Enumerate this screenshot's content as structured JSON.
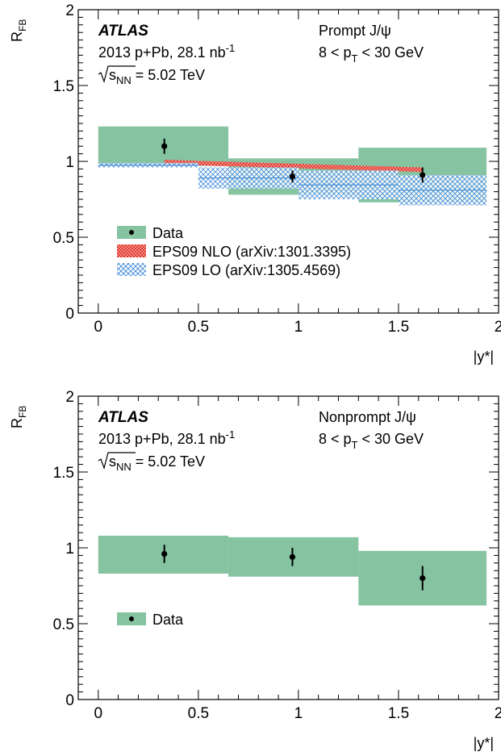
{
  "chart_data": [
    {
      "type": "scatter",
      "ylabel": "R",
      "ylabel_sub": "FB",
      "xlabel": "|y*|",
      "xlim": [
        -0.1,
        2.0
      ],
      "ylim": [
        0,
        2
      ],
      "xticks": [
        "0",
        "0.5",
        "1",
        "1.5",
        "2"
      ],
      "yticks": [
        "0",
        "0.5",
        "1",
        "1.5",
        "2"
      ],
      "text": {
        "atlas": "ATLAS",
        "dataset_prefix": "2013 p+Pb, 28.1 nb",
        "dataset_sup": "-1",
        "energy_s": "s",
        "energy_sub": "NN",
        "energy_val": " = 5.02 TeV",
        "species": "Prompt J/ψ",
        "pt_pre": "8 < p",
        "pt_sub": "T",
        "pt_post": " < 30 GeV"
      },
      "legend": {
        "placement": "bottom-left",
        "entries": [
          "Data",
          "EPS09 NLO (arXiv:1301.3395)",
          "EPS09 LO (arXiv:1305.4569)"
        ]
      },
      "series": [
        {
          "name": "Data",
          "points": [
            {
              "x": 0.33,
              "y": 1.1,
              "err": 0.05,
              "xlo": 0.0,
              "xhi": 0.65,
              "syslo": 0.97,
              "syshi": 1.23
            },
            {
              "x": 0.97,
              "y": 0.9,
              "err": 0.04,
              "xlo": 0.65,
              "xhi": 1.3,
              "syslo": 0.78,
              "syshi": 1.02
            },
            {
              "x": 1.62,
              "y": 0.91,
              "err": 0.05,
              "xlo": 1.3,
              "xhi": 1.94,
              "syslo": 0.73,
              "syshi": 1.09
            }
          ]
        },
        {
          "name": "EPS09 NLO (arXiv:1301.3395)",
          "band_x": [
            0.33,
            1.62
          ],
          "band_lo": [
            0.98,
            0.93
          ],
          "band_hi": [
            1.01,
            0.96
          ]
        },
        {
          "name": "EPS09 LO (arXiv:1305.4569)",
          "steps": [
            {
              "xlo": 0.0,
              "xhi": 0.5,
              "lo": 0.96,
              "hi": 0.99
            },
            {
              "xlo": 0.5,
              "xhi": 1.0,
              "lo": 0.82,
              "hi": 0.96
            },
            {
              "xlo": 1.0,
              "xhi": 1.5,
              "lo": 0.75,
              "hi": 0.94
            },
            {
              "xlo": 1.5,
              "xhi": 1.94,
              "lo": 0.71,
              "hi": 0.91
            }
          ]
        }
      ]
    },
    {
      "type": "scatter",
      "ylabel": "R",
      "ylabel_sub": "FB",
      "xlabel": "|y*|",
      "xlim": [
        -0.1,
        2.0
      ],
      "ylim": [
        0,
        2
      ],
      "xticks": [
        "0",
        "0.5",
        "1",
        "1.5",
        "2"
      ],
      "yticks": [
        "0",
        "0.5",
        "1",
        "1.5",
        "2"
      ],
      "text": {
        "atlas": "ATLAS",
        "dataset_prefix": "2013 p+Pb, 28.1 nb",
        "dataset_sup": "-1",
        "energy_s": "s",
        "energy_sub": "NN",
        "energy_val": " = 5.02 TeV",
        "species": "Nonprompt J/ψ",
        "pt_pre": "8 < p",
        "pt_sub": "T",
        "pt_post": " < 30 GeV"
      },
      "legend": {
        "placement": "bottom-left",
        "entries": [
          "Data"
        ]
      },
      "series": [
        {
          "name": "Data",
          "points": [
            {
              "x": 0.33,
              "y": 0.96,
              "err": 0.06,
              "xlo": 0.0,
              "xhi": 0.65,
              "syslo": 0.83,
              "syshi": 1.08
            },
            {
              "x": 0.97,
              "y": 0.94,
              "err": 0.06,
              "xlo": 0.65,
              "xhi": 1.3,
              "syslo": 0.81,
              "syshi": 1.07
            },
            {
              "x": 1.62,
              "y": 0.8,
              "err": 0.08,
              "xlo": 1.3,
              "xhi": 1.94,
              "syslo": 0.62,
              "syshi": 0.98
            }
          ]
        }
      ]
    }
  ],
  "colors": {
    "data_box": "#86c3a1",
    "nlo_band": "#e2342a",
    "lo_band": "#3a86d8",
    "marker": "#000000"
  }
}
